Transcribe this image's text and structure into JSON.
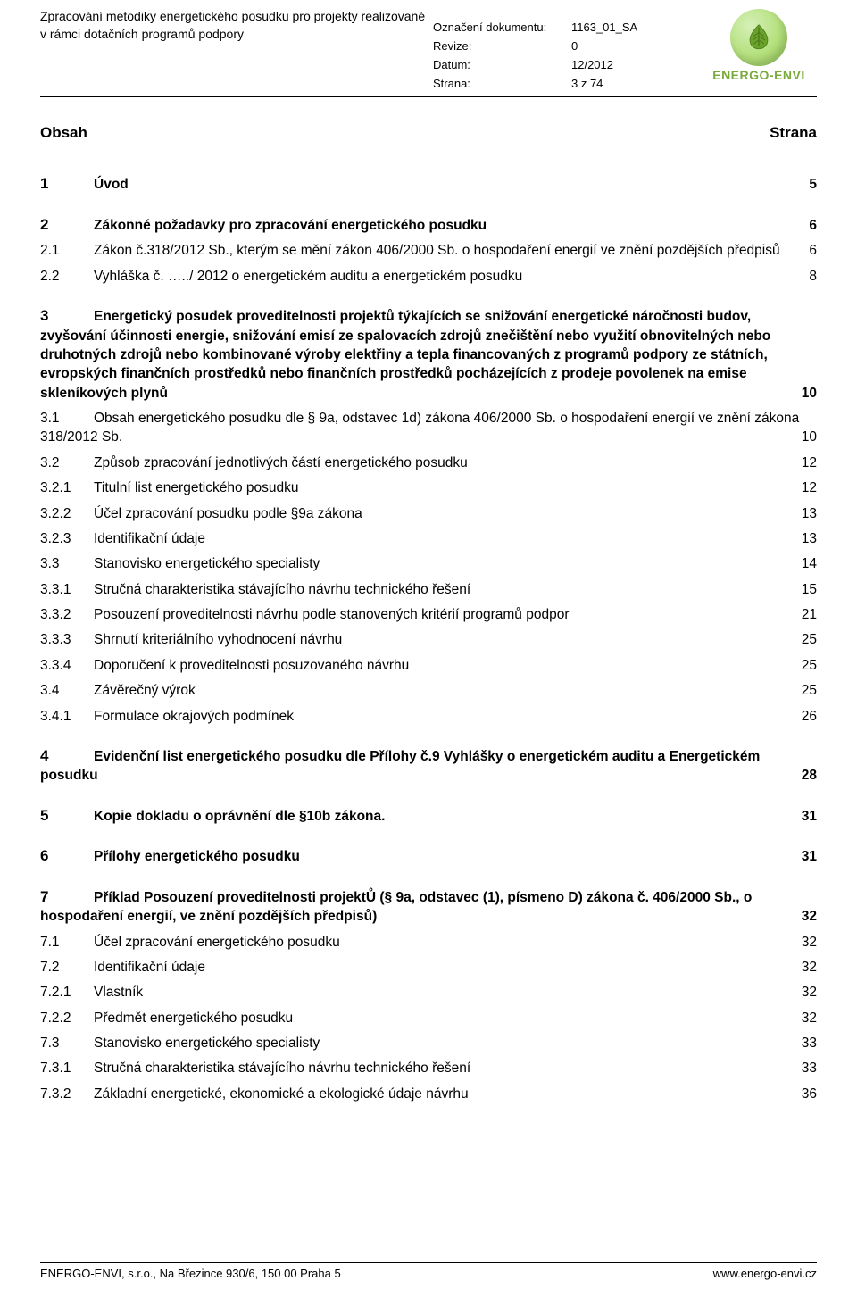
{
  "header": {
    "title_line1": "Zpracování metodiky energetického posudku pro projekty realizované",
    "title_line2": "v rámci dotačních programů podpory",
    "fields": {
      "doc_id_label": "Označení dokumentu:",
      "doc_id": "1163_01_SA",
      "rev_label": "Revize:",
      "rev": "0",
      "date_label": "Datum:",
      "date": "12/2012",
      "page_label": "Strana:",
      "page": "3 z 74"
    },
    "brand": "ENERGO-ENVI",
    "brand_color": "#7aaa3b",
    "leaf_bg": "#b4e07c"
  },
  "content_header": {
    "left": "Obsah",
    "right": "Strana"
  },
  "toc": [
    {
      "n": "1",
      "t": "Úvod",
      "p": "5",
      "bold": true,
      "space_before": true
    },
    {
      "n": "2",
      "t": "Zákonné požadavky pro zpracování energetického posudku",
      "p": "6",
      "bold": true,
      "space_before": true
    },
    {
      "n": "2.1",
      "t": "Zákon č.318/2012 Sb., kterým se mění zákon 406/2000 Sb. o hospodaření energií ve znění pozdějších předpisů",
      "p": "6",
      "wrap": true
    },
    {
      "n": "2.2",
      "t": "Vyhláška č. …../ 2012 o energetickém auditu a energetickém posudku",
      "p": "8"
    },
    {
      "sec3": true,
      "space_before": true,
      "n": "3",
      "t": "Energetický posudek proveditelnosti projektů týkajících se snižování energetické náročnosti budov, zvyšování účinnosti energie, snižování emisí ze spalovacích zdrojů znečištění nebo využití obnovitelných nebo druhotných zdrojů nebo kombinované výroby elektřiny a tepla financovaných z programů podpory ze státních, evropských finančních prostředků nebo finančních prostředků pocházejících z prodeje povolenek na emise skleníkových plynů",
      "p": "10"
    },
    {
      "n": "3.1",
      "t": "Obsah energetického posudku dle § 9a, odstavec 1d)  zákona 406/2000 Sb. o hospodaření energií ve znění zákona 318/2012 Sb.",
      "p": "10",
      "wrap": true
    },
    {
      "n": "3.2",
      "t": "Způsob zpracování jednotlivých částí energetického posudku",
      "p": "12"
    },
    {
      "n": "3.2.1",
      "t": "Titulní list energetického posudku",
      "p": "12"
    },
    {
      "n": "3.2.2",
      "t": "Účel zpracování posudku podle §9a  zákona",
      "p": "13"
    },
    {
      "n": "3.2.3",
      "t": "Identifikační údaje",
      "p": "13"
    },
    {
      "n": "3.3",
      "t": "Stanovisko energetického specialisty",
      "p": "14"
    },
    {
      "n": "3.3.1",
      "t": "Stručná charakteristika stávajícího návrhu technického řešení",
      "p": "15"
    },
    {
      "n": "3.3.2",
      "t": "Posouzení proveditelnosti návrhu podle stanovených kritérií programů podpor",
      "p": "21"
    },
    {
      "n": "3.3.3",
      "t": "Shrnutí kriteriálního vyhodnocení návrhu",
      "p": "25"
    },
    {
      "n": "3.3.4",
      "t": "Doporučení k proveditelnosti posuzovaného návrhu",
      "p": "25"
    },
    {
      "n": "3.4",
      "t": "Závěrečný výrok",
      "p": "25"
    },
    {
      "n": "3.4.1",
      "t": "Formulace okrajových podmínek",
      "p": "26"
    },
    {
      "n": "4",
      "t": "Evidenční list energetického posudku dle Přílohy č.9 Vyhlášky o energetickém auditu a Energetickém posudku",
      "p": "28",
      "bold": true,
      "wrap": true,
      "space_before": true
    },
    {
      "n": "5",
      "t": "Kopie dokladu o oprávnění dle §10b zákona.",
      "p": "31",
      "bold": true,
      "space_before": true
    },
    {
      "n": "6",
      "t": "Přílohy energetického posudku",
      "p": "31",
      "bold": true,
      "space_before": true
    },
    {
      "n": "7",
      "t": "Příklad Posouzení proveditelnosti projektŮ (§ 9a, odstavec (1), písmeno D) zákona č. 406/2000 Sb., o hospodaření energií, ve znění pozdějších předpisů)",
      "p": "32",
      "bold": true,
      "wrap": true,
      "space_before": true
    },
    {
      "n": "7.1",
      "t": "Účel zpracování energetického posudku",
      "p": "32"
    },
    {
      "n": "7.2",
      "t": "Identifikační údaje",
      "p": "32"
    },
    {
      "n": "7.2.1",
      "t": "Vlastník",
      "p": "32"
    },
    {
      "n": "7.2.2",
      "t": "Předmět energetického posudku",
      "p": "32"
    },
    {
      "n": "7.3",
      "t": "Stanovisko energetického specialisty",
      "p": "33"
    },
    {
      "n": "7.3.1",
      "t": "Stručná charakteristika stávajícího návrhu technického řešení",
      "p": "33"
    },
    {
      "n": "7.3.2",
      "t": "Základní energetické, ekonomické a ekologické údaje návrhu",
      "p": "36"
    }
  ],
  "footer": {
    "left": "ENERGO-ENVI, s.r.o., Na Březince 930/6, 150 00  Praha 5",
    "right": "www.energo-envi.cz"
  }
}
